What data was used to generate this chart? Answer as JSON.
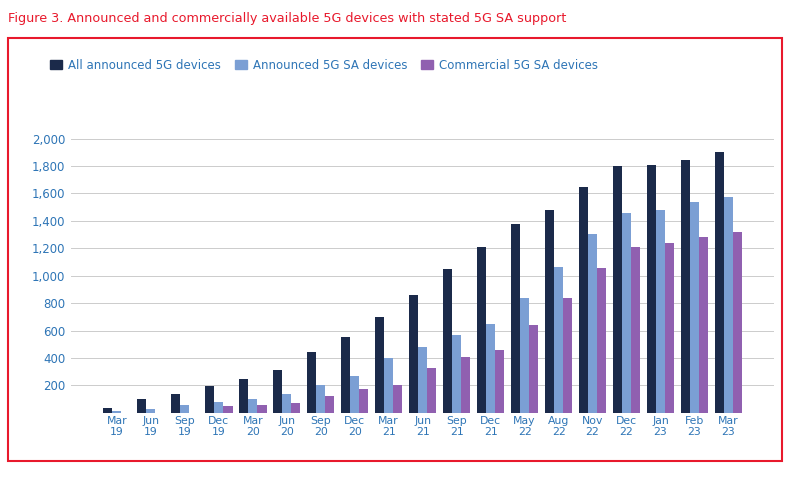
{
  "title": "Figure 3. Announced and commercially available 5G devices with stated 5G SA support",
  "title_color": "#e8192c",
  "categories": [
    [
      "Mar",
      "19"
    ],
    [
      "Jun",
      "19"
    ],
    [
      "Sep",
      "19"
    ],
    [
      "Dec",
      "19"
    ],
    [
      "Mar",
      "20"
    ],
    [
      "Jun",
      "20"
    ],
    [
      "Sep",
      "20"
    ],
    [
      "Dec",
      "20"
    ],
    [
      "Mar",
      "21"
    ],
    [
      "Jun",
      "21"
    ],
    [
      "Sep",
      "21"
    ],
    [
      "Dec",
      "21"
    ],
    [
      "May",
      "22"
    ],
    [
      "Aug",
      "22"
    ],
    [
      "Nov",
      "22"
    ],
    [
      "Dec",
      "22"
    ],
    [
      "Jan",
      "23"
    ],
    [
      "Feb",
      "23"
    ],
    [
      "Mar",
      "23"
    ]
  ],
  "all_announced": [
    35,
    100,
    140,
    195,
    245,
    310,
    440,
    555,
    700,
    860,
    1050,
    1210,
    1375,
    1480,
    1650,
    1800,
    1810,
    1845,
    1900
  ],
  "announced_sa": [
    10,
    25,
    60,
    80,
    100,
    140,
    205,
    270,
    400,
    480,
    565,
    650,
    840,
    1060,
    1305,
    1455,
    1480,
    1535,
    1575
  ],
  "commercial_sa": [
    0,
    0,
    0,
    50,
    60,
    75,
    120,
    175,
    200,
    330,
    405,
    455,
    640,
    840,
    1055,
    1210,
    1235,
    1280,
    1320
  ],
  "color_all": "#1b2a4a",
  "color_announced_sa": "#7b9fd4",
  "color_commercial_sa": "#9060b0",
  "legend_labels": [
    "All announced 5G devices",
    "Announced 5G SA devices",
    "Commercial 5G SA devices"
  ],
  "ylim": [
    0,
    2100
  ],
  "yticks": [
    0,
    200,
    400,
    600,
    800,
    1000,
    1200,
    1400,
    1600,
    1800,
    2000
  ],
  "border_color": "#e8192c",
  "grid_color": "#cccccc",
  "axis_label_color": "#2e75b6",
  "figsize": [
    7.9,
    4.8
  ],
  "dpi": 100
}
